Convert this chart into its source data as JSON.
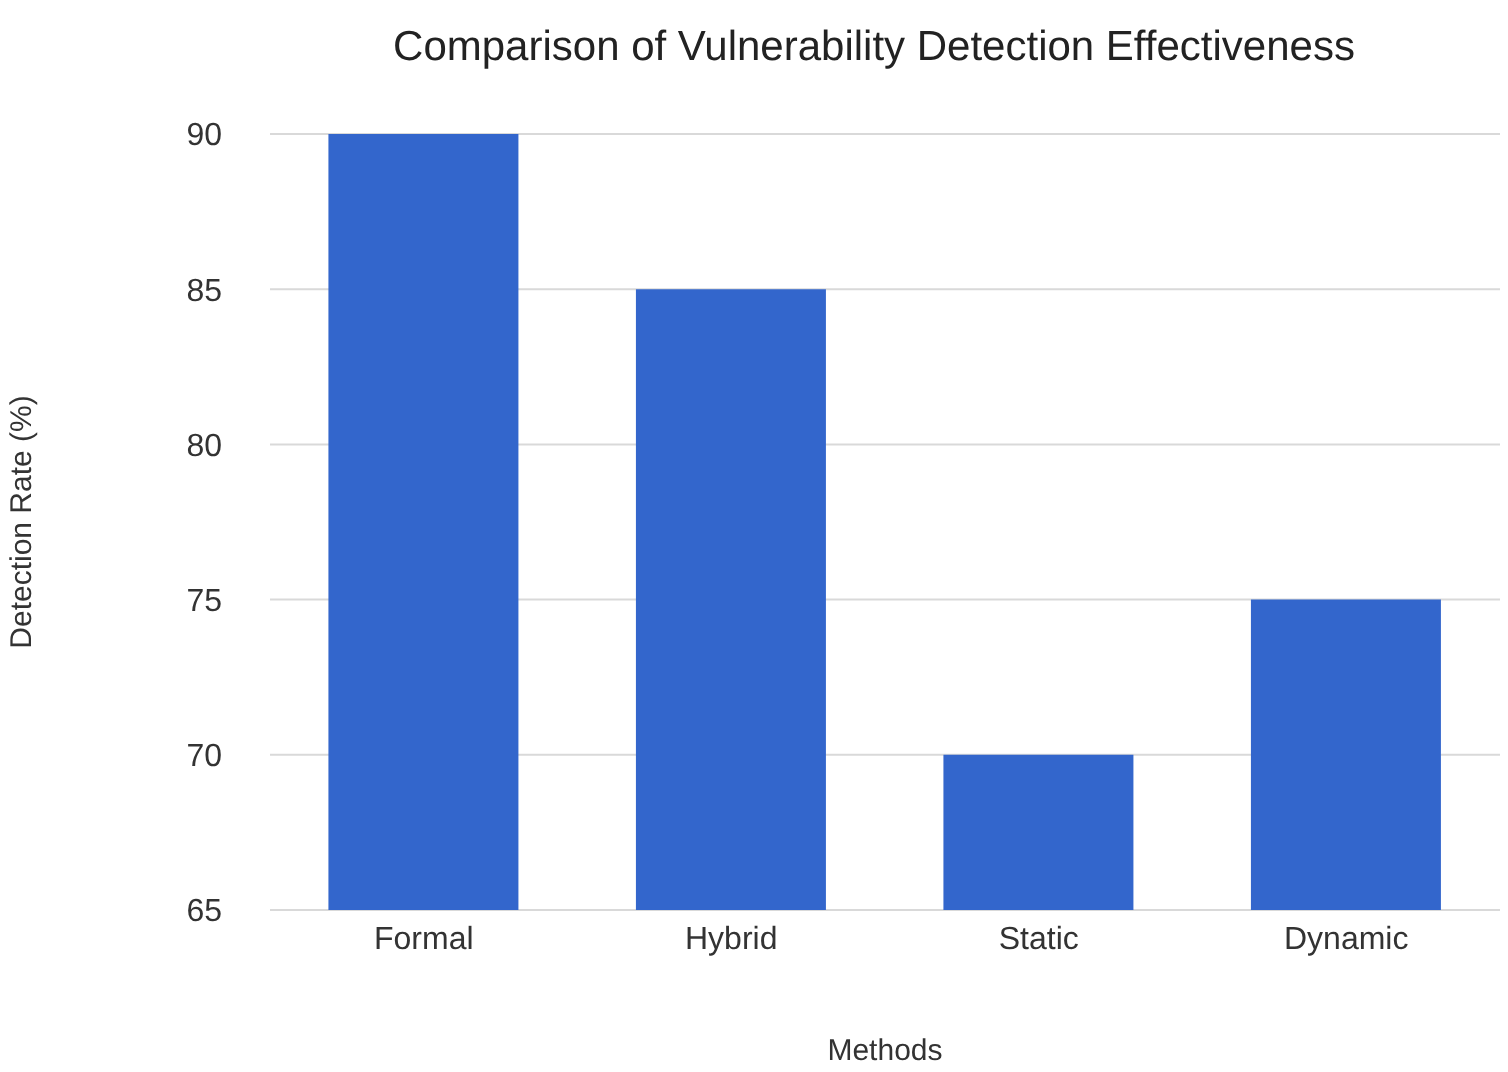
{
  "chart_data": {
    "type": "bar",
    "title": "Comparison of Vulnerability Detection Effectiveness",
    "xlabel": "Methods",
    "ylabel": "Detection Rate (%)",
    "categories": [
      "Formal",
      "Hybrid",
      "Static",
      "Dynamic"
    ],
    "values": [
      90,
      85,
      70,
      75
    ],
    "color": "#3366cc",
    "ylim": [
      65,
      90
    ],
    "yticks": [
      65,
      70,
      75,
      80,
      85,
      90
    ],
    "grid": "y"
  }
}
